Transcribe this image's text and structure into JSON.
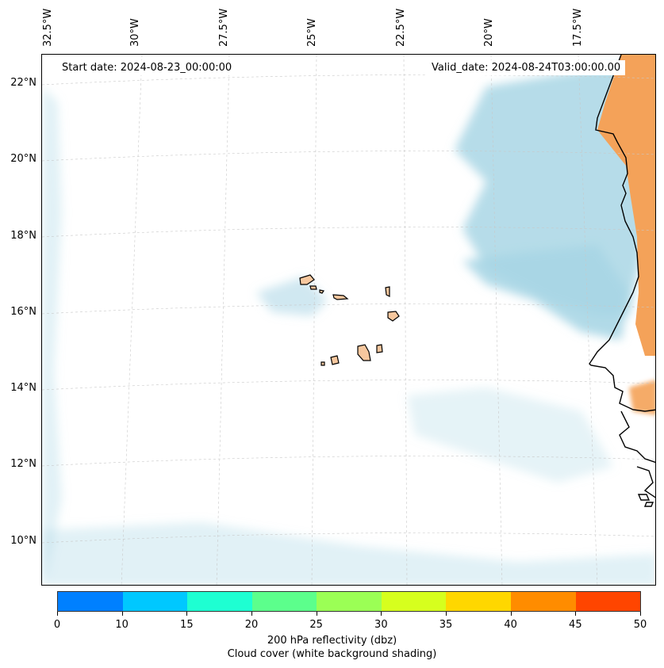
{
  "map": {
    "start_date": "Start date: 2024-08-23_00:00:00",
    "valid_date": "Valid_date: 2024-08-24T03:00:00.00",
    "lon_labels": [
      "32.5°W",
      "30°W",
      "27.5°W",
      "25°W",
      "22.5°W",
      "20°W",
      "17.5°W"
    ],
    "lat_labels": [
      "22°N",
      "20°N",
      "18°N",
      "16°N",
      "14°N",
      "12°N",
      "10°N"
    ]
  },
  "colorbar": {
    "colors": [
      "#0080ff",
      "#00c8ff",
      "#1effd2",
      "#5cff8c",
      "#9bff55",
      "#d6ff1e",
      "#ffd700",
      "#ff8c00",
      "#ff4500"
    ],
    "ticks": [
      "0",
      "10",
      "15",
      "20",
      "25",
      "30",
      "35",
      "40",
      "45",
      "50"
    ],
    "label_line1": "200 hPa reflectivity (dbz)",
    "label_line2": "Cloud cover (white background shading)"
  },
  "colors": {
    "cloud": "#a9d6e5",
    "land_reflectivity": "#f4a259",
    "island": "#f6c79e"
  }
}
